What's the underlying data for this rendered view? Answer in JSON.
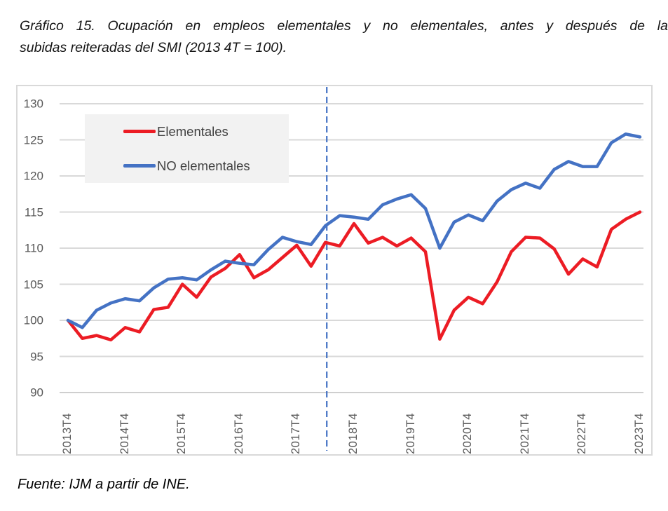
{
  "title": {
    "line1": "Gráfico 15. Ocupación en empleos elementales y no elementales, antes y después de la",
    "line2": "subidas reiteradas del SMI (2013 4T = 100)."
  },
  "source": "Fuente: IJM a partir de INE.",
  "legend": {
    "position": "top-left-inside",
    "items": [
      {
        "label": "Elementales",
        "color": "#EC1C24"
      },
      {
        "label": "NO elementales",
        "color": "#4472C4"
      }
    ]
  },
  "colors": {
    "elementales": "#EC1C24",
    "no_elementales": "#4472C4",
    "gridline": "#D9D9D9",
    "axis_text": "#595959",
    "legend_bg": "#F2F2F2",
    "vline": "#4472C4"
  },
  "chart_data": {
    "type": "line",
    "title": "Gráfico 15. Ocupación en empleos elementales y no elementales, antes y después de la subidas reiteradas del SMI (2013 4T = 100).",
    "xlabel": "",
    "ylabel": "",
    "ylim": [
      90,
      130
    ],
    "y_ticks": [
      90,
      95,
      100,
      105,
      110,
      115,
      120,
      125,
      130
    ],
    "x_tick_labels": [
      "2013T4",
      "2014T4",
      "2015T4",
      "2016T4",
      "2017T4",
      "2018T4",
      "2019T4",
      "2020T4",
      "2021T4",
      "2022T4",
      "2023T4"
    ],
    "grid": "horizontal",
    "baseline_note": "2013 4T = 100",
    "x": [
      "2013T4",
      "2014T1",
      "2014T2",
      "2014T3",
      "2014T4",
      "2015T1",
      "2015T2",
      "2015T3",
      "2015T4",
      "2016T1",
      "2016T2",
      "2016T3",
      "2016T4",
      "2017T1",
      "2017T2",
      "2017T3",
      "2017T4",
      "2018T1",
      "2018T2",
      "2018T3",
      "2018T4",
      "2019T1",
      "2019T2",
      "2019T3",
      "2019T4",
      "2020T1",
      "2020T2",
      "2020T3",
      "2020T4",
      "2021T1",
      "2021T2",
      "2021T3",
      "2021T4",
      "2022T1",
      "2022T2",
      "2022T3",
      "2022T4",
      "2023T1",
      "2023T2",
      "2023T3",
      "2023T4"
    ],
    "series": [
      {
        "name": "Elementales",
        "color": "#EC1C24",
        "values": [
          100,
          97.5,
          97.9,
          97.3,
          99.0,
          98.4,
          101.5,
          101.8,
          105.0,
          103.2,
          106.0,
          107.2,
          109.1,
          105.9,
          107.0,
          108.7,
          110.4,
          107.5,
          110.8,
          110.3,
          113.4,
          110.7,
          111.5,
          110.3,
          111.4,
          109.5,
          97.4,
          101.4,
          103.2,
          102.3,
          105.3,
          109.5,
          111.5,
          111.4,
          109.9,
          106.4,
          108.5,
          107.4,
          112.6,
          114.0,
          115.0
        ]
      },
      {
        "name": "NO elementales",
        "color": "#4472C4",
        "values": [
          100,
          99.0,
          101.4,
          102.4,
          103.0,
          102.7,
          104.5,
          105.7,
          105.9,
          105.6,
          107.0,
          108.2,
          107.9,
          107.7,
          109.8,
          111.5,
          110.9,
          110.5,
          113.1,
          114.5,
          114.3,
          114.0,
          116.0,
          116.8,
          117.4,
          115.5,
          110.0,
          113.6,
          114.6,
          113.8,
          116.5,
          118.1,
          119.0,
          118.3,
          120.9,
          122.0,
          121.3,
          121.3,
          124.6,
          125.8,
          125.4
        ]
      }
    ],
    "annotations": {
      "vline": {
        "x": "2018T2",
        "style": "dashed",
        "color": "#4472C4"
      }
    }
  }
}
